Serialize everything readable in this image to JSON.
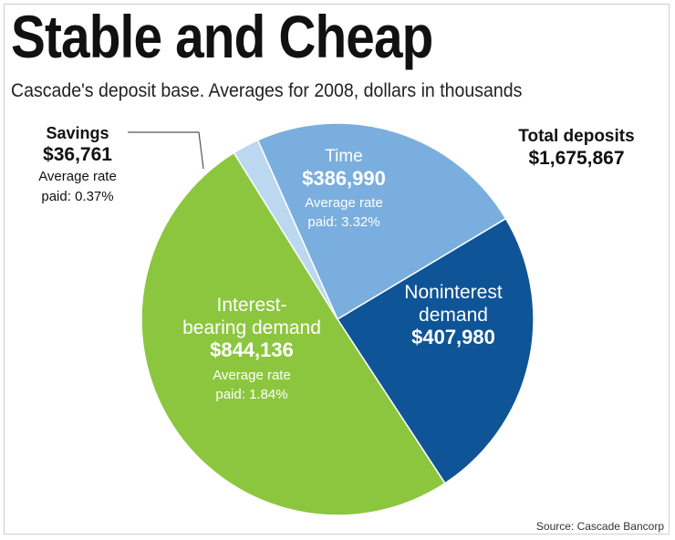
{
  "title": "Stable and Cheap",
  "subtitle": "Cascade's deposit base. Averages for 2008, dollars in thousands",
  "source": "Source: Cascade Bancorp",
  "total": {
    "label": "Total deposits",
    "value": "$1,675,867"
  },
  "chart_data": {
    "type": "pie",
    "title": "Stable and Cheap",
    "subtitle": "Cascade's deposit base. Averages for 2008, dollars in thousands",
    "total": 1675867,
    "slices": [
      {
        "name": "Time",
        "value": 386990,
        "value_label": "$386,990",
        "rate_label_1": "Average rate",
        "rate_label_2": "paid: 3.32%",
        "color": "#7aaedf",
        "text_color": "#ffffff"
      },
      {
        "name": "Noninterest demand",
        "name_line1": "Noninterest",
        "name_line2": "demand",
        "value": 407980,
        "value_label": "$407,980",
        "color": "#0f5496",
        "text_color": "#ffffff"
      },
      {
        "name": "Interest-bearing demand",
        "name_line1": "Interest-",
        "name_line2": "bearing demand",
        "value": 844136,
        "value_label": "$844,136",
        "rate_label_1": "Average rate",
        "rate_label_2": "paid: 1.84%",
        "color": "#8cc63f",
        "text_color": "#ffffff"
      },
      {
        "name": "Savings",
        "value": 36761,
        "value_label": "$36,761",
        "rate_label_1": "Average rate",
        "rate_label_2": "paid: 0.37%",
        "color": "#bcd8f0",
        "text_color": "#111111"
      }
    ]
  }
}
